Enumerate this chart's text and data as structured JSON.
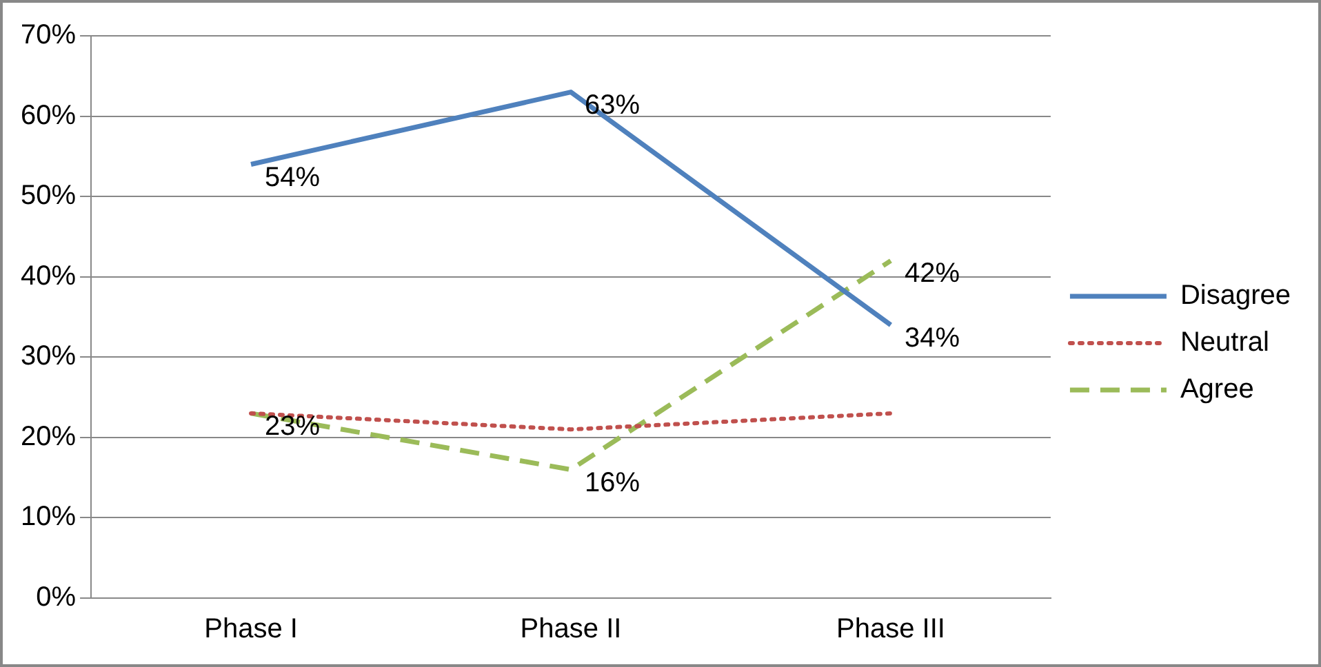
{
  "chart_data": {
    "type": "line",
    "categories": [
      "Phase I",
      "Phase II",
      "Phase III"
    ],
    "ylim": [
      0,
      70
    ],
    "yticks": [
      {
        "value": 0,
        "label": "0%"
      },
      {
        "value": 10,
        "label": "10%"
      },
      {
        "value": 20,
        "label": "20%"
      },
      {
        "value": 30,
        "label": "30%"
      },
      {
        "value": 40,
        "label": "40%"
      },
      {
        "value": 50,
        "label": "50%"
      },
      {
        "value": 60,
        "label": "60%"
      },
      {
        "value": 70,
        "label": "70%"
      }
    ],
    "grid": "y",
    "legend": "right",
    "marker": "none",
    "series": [
      {
        "name": "Disagree",
        "color": "#4f81bd",
        "values": [
          54,
          63,
          34
        ],
        "line_style": "solid",
        "value_labels": [
          "54%",
          "63%",
          "34%"
        ]
      },
      {
        "name": "Neutral",
        "color": "#c0504d",
        "values": [
          23,
          21,
          23
        ],
        "line_style": "dotted"
      },
      {
        "name": "Agree",
        "color": "#9bbb59",
        "values": [
          23,
          16,
          42
        ],
        "line_style": "dashed",
        "value_labels": [
          "23%",
          "16%",
          "42%"
        ]
      }
    ]
  }
}
